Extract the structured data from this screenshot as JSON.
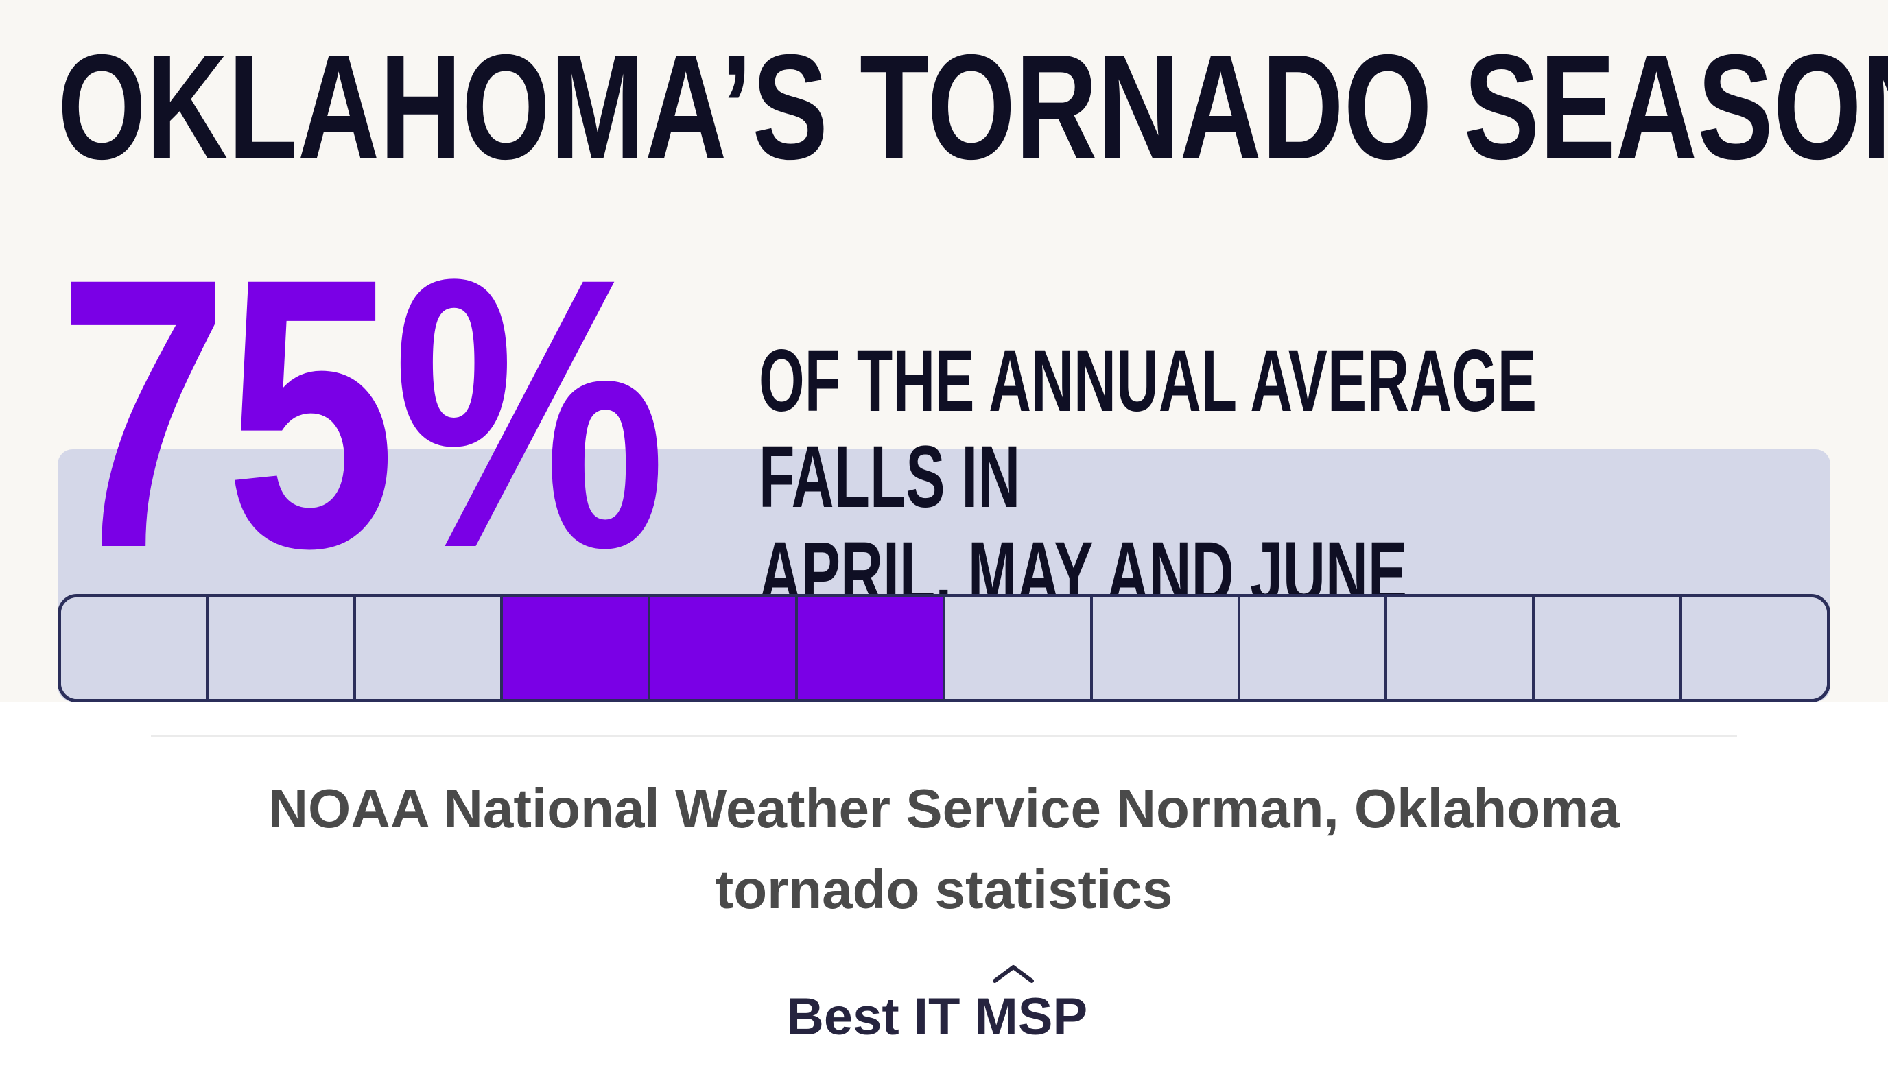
{
  "headline": "OKLAHOMA’S TORNADO SEASON",
  "stat": {
    "value_text": "75%",
    "value": 75,
    "description_line1": "OF THE ANNUAL AVERAGE FALLS IN",
    "description_line2": "APRIL, MAY AND JUNE"
  },
  "months_bar": {
    "total_months": 12,
    "highlighted_months": [
      4,
      5,
      6
    ],
    "highlight_color": "#7a00e6",
    "base_color": "#d4d7e8",
    "border_color": "#2b2e5a"
  },
  "source": {
    "line1": "NOAA National Weather Service Norman, Oklahoma",
    "line2": "tornado statistics"
  },
  "logo": {
    "text": "Best IT MSP",
    "icon": "caret-up-icon"
  },
  "colors": {
    "accent": "#7a00e6",
    "headline": "#0f0f24",
    "banner_bg": "#f9f7f3",
    "source_text": "#4a4a4a"
  }
}
